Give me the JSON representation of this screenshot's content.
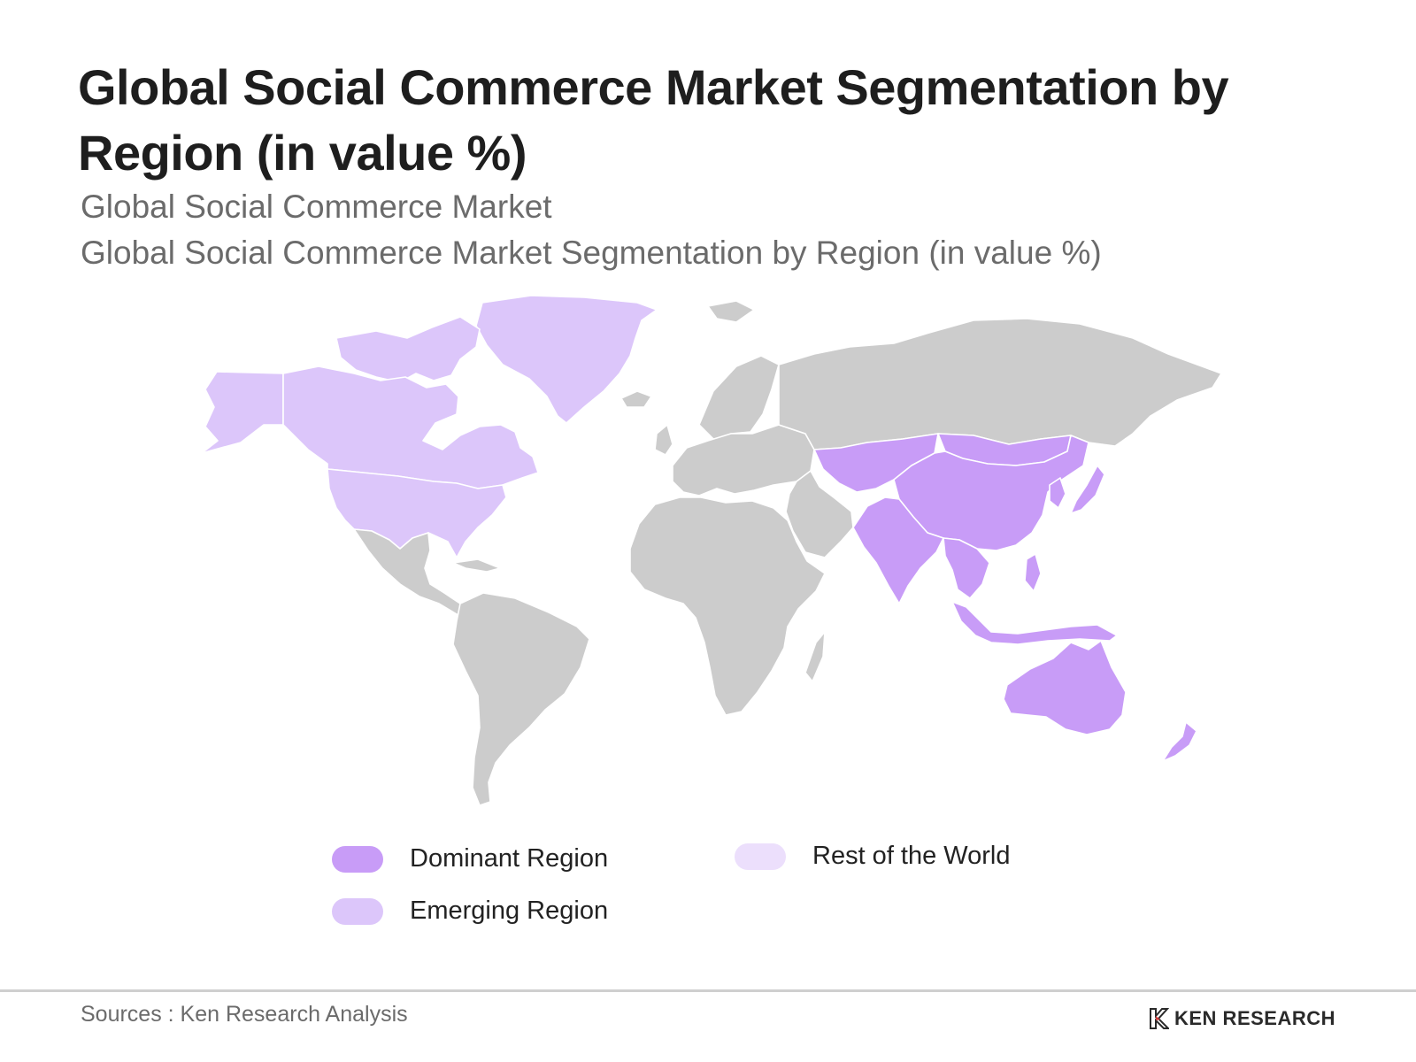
{
  "title": "Global Social Commerce Market Segmentation by Region (in value %)",
  "subtitle_1": "Global Social Commerce Market",
  "subtitle_2": "Global Social Commerce Market Segmentation by Region (in value %)",
  "colors": {
    "dominant": "#c89cf7",
    "emerging": "#dcc6fa",
    "rest_of_world": "#ecdffc",
    "other_land": "#cccccc"
  },
  "legend": [
    {
      "key": "dominant",
      "label": "Dominant Region"
    },
    {
      "key": "emerging",
      "label": "Emerging Region"
    },
    {
      "key": "rest_of_world",
      "label": "Rest of the World"
    }
  ],
  "map": {
    "dominant_regions": [
      "China",
      "India",
      "Japan",
      "South Korea",
      "Southeast Asia",
      "Central Asia",
      "Mongolia",
      "Australia",
      "New Zealand"
    ],
    "emerging_regions": [
      "Canada",
      "United States",
      "Alaska",
      "Greenland"
    ]
  },
  "footer": {
    "source": "Sources : Ken Research Analysis",
    "logo_text": "KEN RESEARCH",
    "logo_icon": "ken-research-logo-icon"
  }
}
